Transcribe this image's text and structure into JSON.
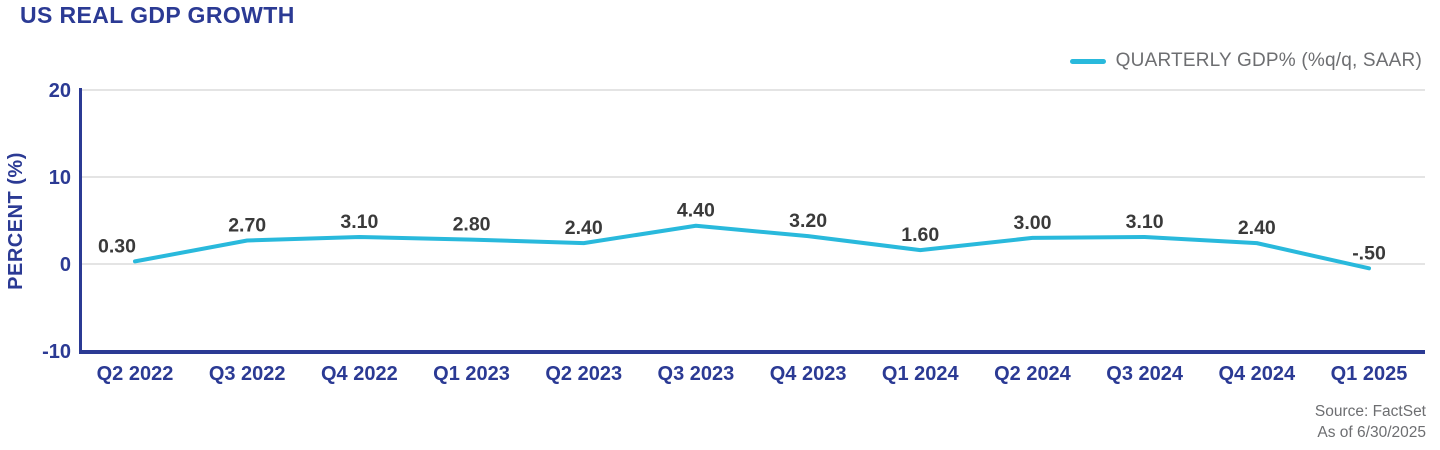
{
  "title": "US REAL GDP GROWTH",
  "legend": {
    "label": "QUARTERLY GDP% (%q/q, SAAR)"
  },
  "chart_data": {
    "type": "line",
    "title": "US REAL GDP GROWTH",
    "categories": [
      "Q2 2022",
      "Q3 2022",
      "Q4 2022",
      "Q1 2023",
      "Q2 2023",
      "Q3 2023",
      "Q4 2023",
      "Q1 2024",
      "Q2 2024",
      "Q3 2024",
      "Q4 2024",
      "Q1 2025"
    ],
    "series": [
      {
        "name": "QUARTERLY GDP% (%q/q, SAAR)",
        "values": [
          0.3,
          2.7,
          3.1,
          2.8,
          2.4,
          4.4,
          3.2,
          1.6,
          3.0,
          3.1,
          2.4,
          -0.5
        ],
        "point_labels": [
          "0.30",
          "2.70",
          "3.10",
          "2.80",
          "2.40",
          "4.40",
          "3.20",
          "1.60",
          "3.00",
          "3.10",
          "2.40",
          "-.50"
        ]
      }
    ],
    "xlabel": "",
    "ylabel": "PERCENT (%)",
    "ylim": [
      -10,
      20
    ],
    "yticks": [
      20,
      10,
      0,
      -10
    ],
    "grid": true,
    "legend_position": "top-right"
  },
  "colors": {
    "navy": "#2B3A94",
    "cyan": "#29B9DC",
    "gridline": "#DCDCDC",
    "data_label": "#3A3A3A",
    "muted_text": "#6D6E71"
  },
  "footer": {
    "source": "Source: FactSet",
    "as_of": "As of 6/30/2025"
  }
}
